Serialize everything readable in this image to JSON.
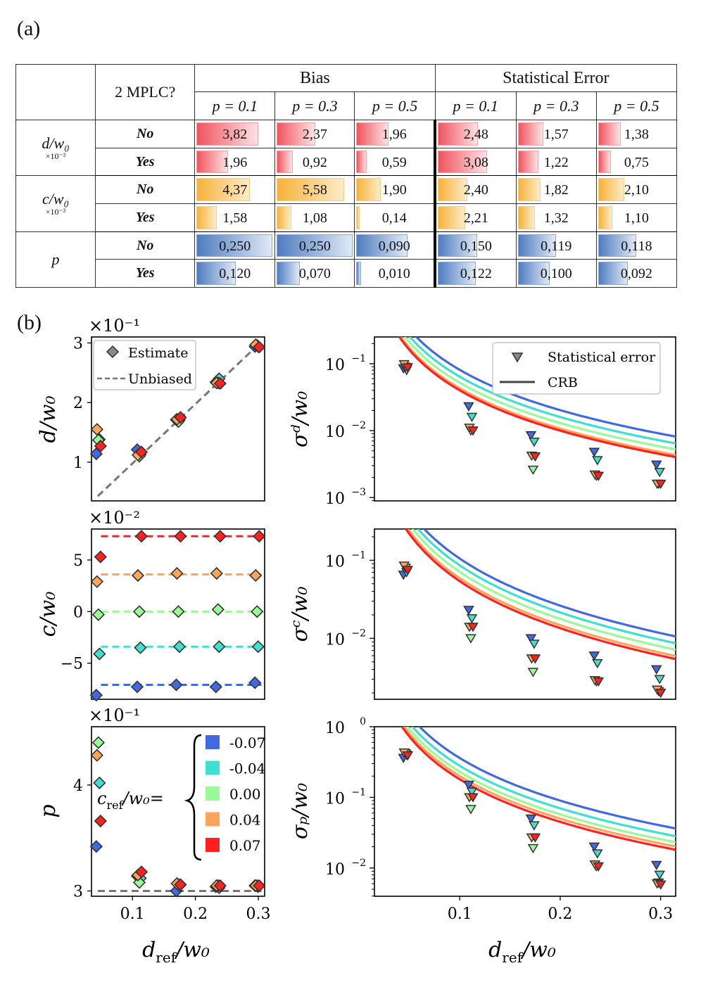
{
  "panel_a_label": "(a)",
  "panel_b_label": "(b)",
  "table": {
    "header": {
      "mplc": "2 MPLC?",
      "bias": "Bias",
      "stat": "Statistical Error",
      "p_labels": [
        "p = 0.1",
        "p = 0.3",
        "p = 0.5"
      ]
    },
    "rows": [
      {
        "param": "d/w₀",
        "scale": "×10⁻²",
        "mplc": "No",
        "color": "red",
        "values": [
          "3,82",
          "2,37",
          "1,96",
          "2,48",
          "1,57",
          "1,38"
        ],
        "fill": [
          0.79,
          0.49,
          0.4,
          0.51,
          0.32,
          0.28
        ]
      },
      {
        "param": "",
        "scale": "",
        "mplc": "Yes",
        "color": "red",
        "values": [
          "1,96",
          "0,92",
          "0,59",
          "3,08",
          "1,22",
          "0,75"
        ],
        "fill": [
          0.4,
          0.19,
          0.12,
          0.63,
          0.25,
          0.15
        ]
      },
      {
        "param": "c/w₀",
        "scale": "×10⁻²",
        "mplc": "No",
        "color": "orange",
        "values": [
          "4,37",
          "5,58",
          "1,90",
          "2,40",
          "1,82",
          "2,10"
        ],
        "fill": [
          0.68,
          0.87,
          0.3,
          0.37,
          0.28,
          0.33
        ]
      },
      {
        "param": "",
        "scale": "",
        "mplc": "Yes",
        "color": "orange",
        "values": [
          "1,58",
          "1,08",
          "0,14",
          "2,21",
          "1,32",
          "1,10"
        ],
        "fill": [
          0.25,
          0.17,
          0.02,
          0.34,
          0.21,
          0.17
        ]
      },
      {
        "param": "p",
        "scale": "",
        "mplc": "No",
        "color": "blue",
        "values": [
          "0,250",
          "0,250",
          "0,090",
          "0,150",
          "0,119",
          "0,118"
        ],
        "fill": [
          0.98,
          0.98,
          0.65,
          0.5,
          0.48,
          0.48
        ]
      },
      {
        "param": "",
        "scale": "",
        "mplc": "Yes",
        "color": "blue",
        "values": [
          "0,120",
          "0,070",
          "0,010",
          "0,122",
          "0,100",
          "0,092"
        ],
        "fill": [
          0.5,
          0.28,
          0.04,
          0.48,
          0.4,
          0.37
        ]
      }
    ]
  },
  "chart_data": [
    {
      "type": "scatter",
      "id": "d_est",
      "ylabel": "d/w0",
      "xlim": [
        0.035,
        0.31
      ],
      "ylim": [
        0.35,
        3.1
      ],
      "yticks": [
        1,
        2,
        3
      ],
      "ytick_labels": [
        "1",
        "2",
        "3"
      ],
      "scale_label": "×10⁻¹",
      "legend": [
        "Estimate",
        "Unbiased"
      ],
      "x": [
        0.046,
        0.111,
        0.173,
        0.236,
        0.298
      ],
      "series": [
        {
          "name": "-0.07",
          "color": "#4169e1",
          "values": [
            1.14,
            1.21,
            1.71,
            2.34,
            2.94
          ]
        },
        {
          "name": "-0.04",
          "color": "#40e0d0",
          "values": [
            1.38,
            1.13,
            1.71,
            2.4,
            2.94
          ]
        },
        {
          "name": "0.00",
          "color": "#98fb98",
          "values": [
            1.37,
            1.1,
            1.68,
            2.33,
            2.96
          ]
        },
        {
          "name": "0.04",
          "color": "#ffa55a",
          "values": [
            1.55,
            1.12,
            1.72,
            2.33,
            2.97
          ]
        },
        {
          "name": "0.07",
          "color": "#ff2020",
          "values": [
            1.27,
            1.17,
            1.75,
            2.32,
            2.93
          ]
        }
      ]
    },
    {
      "type": "scatter",
      "id": "c_est",
      "ylabel": "c/w0",
      "xlim": [
        0.035,
        0.31
      ],
      "ylim": [
        -8.5,
        8.0
      ],
      "yticks": [
        -5,
        0,
        5
      ],
      "ytick_labels": [
        "−5",
        "0",
        "5"
      ],
      "scale_label": "×10⁻²",
      "x": [
        0.046,
        0.111,
        0.173,
        0.236,
        0.298
      ],
      "series": [
        {
          "name": "-0.07",
          "color": "#4169e1",
          "ref": -7.1,
          "values": [
            -8.1,
            -7.3,
            -7.1,
            -7.3,
            -6.9
          ]
        },
        {
          "name": "-0.04",
          "color": "#40e0d0",
          "ref": -3.4,
          "values": [
            -4.1,
            -3.5,
            -3.4,
            -3.4,
            -3.4
          ]
        },
        {
          "name": "0.00",
          "color": "#98fb98",
          "ref": 0.0,
          "values": [
            -0.3,
            0.0,
            0.0,
            0.2,
            0.0
          ]
        },
        {
          "name": "0.04",
          "color": "#ffa55a",
          "ref": 3.6,
          "values": [
            2.9,
            3.5,
            3.7,
            3.7,
            3.5
          ]
        },
        {
          "name": "0.07",
          "color": "#ff2020",
          "ref": 7.3,
          "values": [
            5.3,
            7.3,
            7.3,
            7.3,
            7.3
          ]
        }
      ]
    },
    {
      "type": "scatter",
      "id": "p_est",
      "ylabel": "p",
      "xlim": [
        0.035,
        0.31
      ],
      "ylim": [
        2.95,
        4.55
      ],
      "yticks": [
        3,
        4
      ],
      "ytick_labels": [
        "3",
        "4"
      ],
      "scale_label": "×10⁻¹",
      "xticks": [
        0.1,
        0.2,
        0.3
      ],
      "xtick_labels": [
        "0.1",
        "0.2",
        "0.3"
      ],
      "xlabel": "d_ref/w0",
      "legend_title": "c_ref/w0 =",
      "legend_entries": [
        "-0.07",
        "-0.04",
        "0.00",
        "0.04",
        "0.07"
      ],
      "x": [
        0.046,
        0.111,
        0.173,
        0.236,
        0.298
      ],
      "series": [
        {
          "name": "-0.07",
          "color": "#4169e1",
          "values": [
            3.42,
            3.14,
            3.0,
            3.04,
            3.05
          ]
        },
        {
          "name": "-0.04",
          "color": "#40e0d0",
          "values": [
            4.02,
            3.12,
            3.05,
            3.03,
            3.04
          ]
        },
        {
          "name": "0.00",
          "color": "#98fb98",
          "values": [
            4.4,
            3.08,
            3.06,
            3.05,
            3.05
          ]
        },
        {
          "name": "0.04",
          "color": "#ffa55a",
          "values": [
            4.28,
            3.15,
            3.07,
            3.05,
            3.05
          ]
        },
        {
          "name": "0.07",
          "color": "#ff2020",
          "values": [
            3.66,
            3.18,
            3.06,
            3.05,
            3.05
          ]
        }
      ]
    },
    {
      "type": "line",
      "id": "sigma_d",
      "ylabel": "σ_d/w0",
      "yscale": "log",
      "xlim": [
        0.015,
        0.315
      ],
      "ylim_exp": [
        -3.05,
        -0.6
      ],
      "yticks_exp": [
        -3,
        -2,
        -1
      ],
      "ytick_labels": [
        "10",
        "10",
        "10"
      ],
      "ytick_exps": [
        "−3",
        "−2",
        "−1"
      ],
      "legend": [
        "Statistical error",
        "CRB"
      ],
      "crb_k": [
        0.00081,
        0.00064,
        0.00052,
        0.00043,
        0.0004
      ],
      "x": [
        0.046,
        0.111,
        0.173,
        0.236,
        0.298
      ],
      "series": [
        {
          "name": "-0.07",
          "color": "#4169e1",
          "values": [
            0.085,
            0.023,
            0.0085,
            0.0048,
            0.0031
          ]
        },
        {
          "name": "-0.04",
          "color": "#40e0d0",
          "values": [
            0.08,
            0.016,
            0.0068,
            0.0036,
            0.0024
          ]
        },
        {
          "name": "0.00",
          "color": "#98fb98",
          "values": [
            0.09,
            0.01,
            0.0026,
            0.0021,
            0.0016
          ]
        },
        {
          "name": "0.04",
          "color": "#ffa55a",
          "values": [
            0.098,
            0.011,
            0.0042,
            0.0022,
            0.0016
          ]
        },
        {
          "name": "0.07",
          "color": "#ff2020",
          "values": [
            0.088,
            0.01,
            0.0041,
            0.0021,
            0.0016
          ]
        }
      ]
    },
    {
      "type": "line",
      "id": "sigma_c",
      "ylabel": "σ_c/w0",
      "yscale": "log",
      "xlim": [
        0.015,
        0.315
      ],
      "ylim_exp": [
        -2.78,
        -0.6
      ],
      "yticks_exp": [
        -2,
        -1
      ],
      "ytick_labels": [
        "10",
        "10"
      ],
      "ytick_exps": [
        "−2",
        "−1"
      ],
      "crb_k": [
        0.00105,
        0.00086,
        0.00071,
        0.00059,
        0.00054
      ],
      "x": [
        0.046,
        0.111,
        0.173,
        0.236,
        0.298
      ],
      "series": [
        {
          "name": "-0.07",
          "color": "#4169e1",
          "values": [
            0.065,
            0.023,
            0.01,
            0.006,
            0.004
          ]
        },
        {
          "name": "-0.04",
          "color": "#40e0d0",
          "values": [
            0.07,
            0.018,
            0.0085,
            0.0048,
            0.003
          ]
        },
        {
          "name": "0.00",
          "color": "#98fb98",
          "values": [
            0.08,
            0.01,
            0.0037,
            0.0028,
            0.0021
          ]
        },
        {
          "name": "0.04",
          "color": "#ffa55a",
          "values": [
            0.085,
            0.014,
            0.0055,
            0.0029,
            0.0022
          ]
        },
        {
          "name": "0.07",
          "color": "#ff2020",
          "values": [
            0.075,
            0.014,
            0.0055,
            0.0028,
            0.002
          ]
        }
      ]
    },
    {
      "type": "line",
      "id": "sigma_p",
      "ylabel": "σ_p/w0",
      "yscale": "log",
      "xlim": [
        0.015,
        0.315
      ],
      "ylim_exp": [
        -2.4,
        0.0
      ],
      "yticks_exp": [
        -2,
        -1,
        0
      ],
      "ytick_labels": [
        "10",
        "10",
        "10"
      ],
      "ytick_exps": [
        "−2",
        "−1",
        "0"
      ],
      "xticks": [
        0.1,
        0.2,
        0.3
      ],
      "xtick_labels": [
        "0.1",
        "0.2",
        "0.3"
      ],
      "xlabel": "d_ref/w0",
      "crb_k": [
        0.0036,
        0.0028,
        0.0023,
        0.002,
        0.0018
      ],
      "x": [
        0.046,
        0.111,
        0.173,
        0.236,
        0.298
      ],
      "series": [
        {
          "name": "-0.07",
          "color": "#4169e1",
          "values": [
            0.36,
            0.15,
            0.05,
            0.02,
            0.011
          ]
        },
        {
          "name": "-0.04",
          "color": "#40e0d0",
          "values": [
            0.4,
            0.12,
            0.04,
            0.016,
            0.008
          ]
        },
        {
          "name": "0.00",
          "color": "#98fb98",
          "values": [
            0.42,
            0.068,
            0.019,
            0.0105,
            0.0062
          ]
        },
        {
          "name": "0.04",
          "color": "#ffa55a",
          "values": [
            0.43,
            0.1,
            0.027,
            0.0112,
            0.006
          ]
        },
        {
          "name": "0.07",
          "color": "#ff2020",
          "values": [
            0.39,
            0.1,
            0.027,
            0.0105,
            0.0058
          ]
        }
      ]
    }
  ]
}
